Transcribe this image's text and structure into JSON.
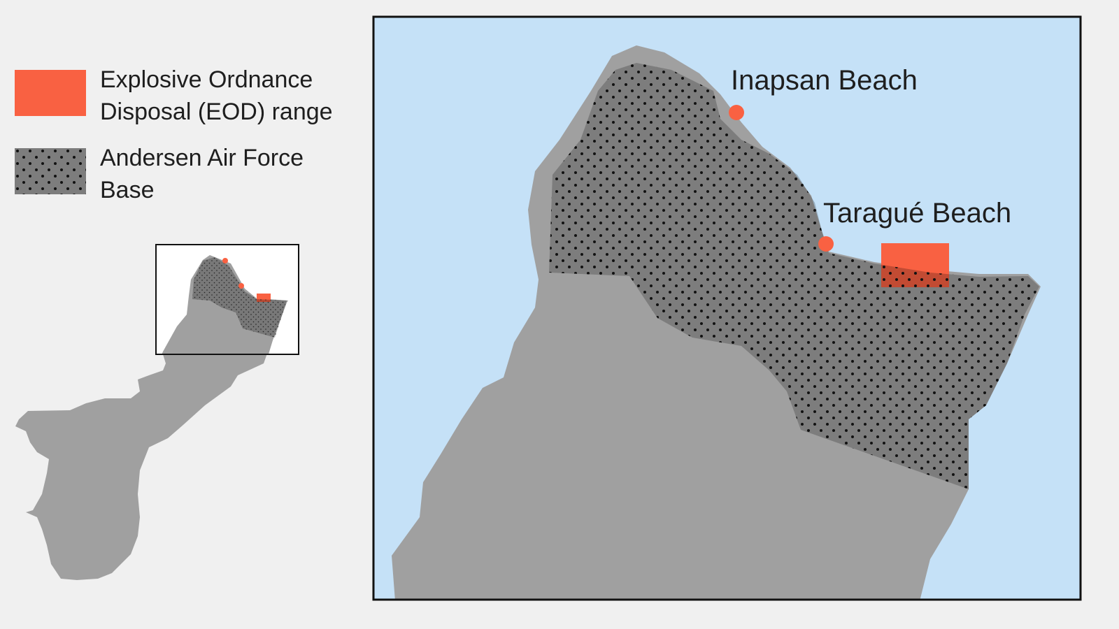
{
  "legend": {
    "items": [
      {
        "label": "Explosive Ordnance\nDisposal (EOD) range",
        "swatch": "solid",
        "color": "#F96142"
      },
      {
        "label": "Andersen Air Force\nBase",
        "swatch": "dotted",
        "color": "#808080"
      }
    ]
  },
  "map": {
    "places": [
      {
        "name": "Inapsan Beach",
        "marker": "circle"
      },
      {
        "name": "Taragué Beach",
        "marker": "circle"
      }
    ],
    "colors": {
      "water": "#C5E1F7",
      "land": "#A0A0A0",
      "eod": "#F96142",
      "base_overlay": "#000000",
      "background": "#F0F0F0",
      "inset_bg": "#FFFFFF"
    }
  }
}
